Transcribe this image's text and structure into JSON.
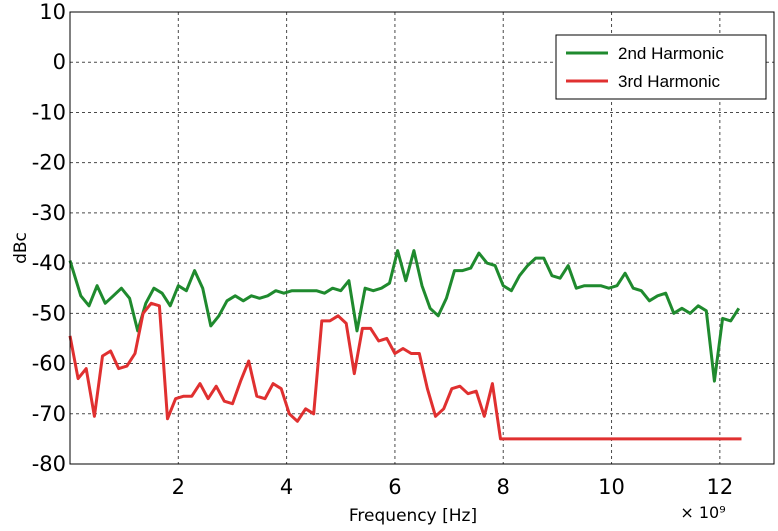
{
  "chart_data": {
    "type": "line",
    "xlabel": "Frequency [Hz]",
    "ylabel": "dBc",
    "x_multiplier_label": "× 10⁹",
    "xlim": [
      0,
      13
    ],
    "ylim": [
      -80,
      10
    ],
    "x_ticks": [
      {
        "value": 2,
        "label": "2"
      },
      {
        "value": 4,
        "label": "4"
      },
      {
        "value": 6,
        "label": "6"
      },
      {
        "value": 8,
        "label": "8"
      },
      {
        "value": 10,
        "label": "10"
      },
      {
        "value": 12,
        "label": "12"
      }
    ],
    "y_ticks": [
      {
        "value": 10,
        "label": "10"
      },
      {
        "value": 0,
        "label": "0"
      },
      {
        "value": -10,
        "label": "-10"
      },
      {
        "value": -20,
        "label": "-20"
      },
      {
        "value": -30,
        "label": "-30"
      },
      {
        "value": -40,
        "label": "-40"
      },
      {
        "value": -50,
        "label": "-50"
      },
      {
        "value": -60,
        "label": "-60"
      },
      {
        "value": -70,
        "label": "-70"
      },
      {
        "value": -80,
        "label": "-80"
      }
    ],
    "grid": true,
    "legend_position": "top-right",
    "series": [
      {
        "name": "2nd Harmonic",
        "color": "#1f8a2e",
        "points": [
          [
            0.0,
            -39.5
          ],
          [
            0.2,
            -46.5
          ],
          [
            0.35,
            -48.5
          ],
          [
            0.5,
            -44.5
          ],
          [
            0.65,
            -48
          ],
          [
            0.8,
            -46.5
          ],
          [
            0.95,
            -45
          ],
          [
            1.1,
            -47
          ],
          [
            1.25,
            -53.5
          ],
          [
            1.4,
            -48
          ],
          [
            1.55,
            -45
          ],
          [
            1.7,
            -46
          ],
          [
            1.85,
            -48.5
          ],
          [
            2.0,
            -44.5
          ],
          [
            2.15,
            -45.5
          ],
          [
            2.3,
            -41.5
          ],
          [
            2.45,
            -45
          ],
          [
            2.6,
            -52.5
          ],
          [
            2.75,
            -50.5
          ],
          [
            2.9,
            -47.5
          ],
          [
            3.05,
            -46.5
          ],
          [
            3.2,
            -47.5
          ],
          [
            3.35,
            -46.5
          ],
          [
            3.5,
            -47
          ],
          [
            3.65,
            -46.5
          ],
          [
            3.8,
            -45.5
          ],
          [
            3.95,
            -46
          ],
          [
            4.1,
            -45.5
          ],
          [
            4.25,
            -45.5
          ],
          [
            4.4,
            -45.5
          ],
          [
            4.55,
            -45.5
          ],
          [
            4.7,
            -46
          ],
          [
            4.85,
            -45
          ],
          [
            5.0,
            -45.5
          ],
          [
            5.15,
            -43.5
          ],
          [
            5.3,
            -53.5
          ],
          [
            5.45,
            -45
          ],
          [
            5.6,
            -45.5
          ],
          [
            5.75,
            -45
          ],
          [
            5.9,
            -44
          ],
          [
            6.05,
            -37.5
          ],
          [
            6.2,
            -43.5
          ],
          [
            6.35,
            -37.5
          ],
          [
            6.5,
            -44.5
          ],
          [
            6.65,
            -49
          ],
          [
            6.8,
            -50.5
          ],
          [
            6.95,
            -47
          ],
          [
            7.1,
            -41.5
          ],
          [
            7.25,
            -41.5
          ],
          [
            7.4,
            -41
          ],
          [
            7.55,
            -38
          ],
          [
            7.7,
            -40
          ],
          [
            7.85,
            -40.5
          ],
          [
            8.0,
            -44.5
          ],
          [
            8.15,
            -45.5
          ],
          [
            8.3,
            -42.5
          ],
          [
            8.45,
            -40.5
          ],
          [
            8.6,
            -39
          ],
          [
            8.75,
            -39
          ],
          [
            8.9,
            -42.5
          ],
          [
            9.05,
            -43
          ],
          [
            9.2,
            -40.5
          ],
          [
            9.35,
            -45
          ],
          [
            9.5,
            -44.5
          ],
          [
            9.65,
            -44.5
          ],
          [
            9.8,
            -44.5
          ],
          [
            9.95,
            -45
          ],
          [
            10.1,
            -44.5
          ],
          [
            10.25,
            -42
          ],
          [
            10.4,
            -45
          ],
          [
            10.55,
            -45.5
          ],
          [
            10.7,
            -47.5
          ],
          [
            10.85,
            -46.5
          ],
          [
            11.0,
            -46
          ],
          [
            11.15,
            -50
          ],
          [
            11.3,
            -49
          ],
          [
            11.45,
            -50
          ],
          [
            11.6,
            -48.5
          ],
          [
            11.75,
            -49.5
          ],
          [
            11.9,
            -63.5
          ],
          [
            12.05,
            -51
          ],
          [
            12.2,
            -51.5
          ],
          [
            12.35,
            -49
          ]
        ]
      },
      {
        "name": "3rd Harmonic",
        "color": "#e03030",
        "points": [
          [
            0.0,
            -54.5
          ],
          [
            0.15,
            -63
          ],
          [
            0.3,
            -61
          ],
          [
            0.45,
            -70.5
          ],
          [
            0.6,
            -58.5
          ],
          [
            0.75,
            -57.5
          ],
          [
            0.9,
            -61
          ],
          [
            1.05,
            -60.5
          ],
          [
            1.2,
            -58
          ],
          [
            1.35,
            -50
          ],
          [
            1.5,
            -48
          ],
          [
            1.65,
            -48.5
          ],
          [
            1.8,
            -71
          ],
          [
            1.95,
            -67
          ],
          [
            2.1,
            -66.5
          ],
          [
            2.25,
            -66.5
          ],
          [
            2.4,
            -64
          ],
          [
            2.55,
            -67
          ],
          [
            2.7,
            -64.5
          ],
          [
            2.85,
            -67.5
          ],
          [
            3.0,
            -68
          ],
          [
            3.15,
            -63.5
          ],
          [
            3.3,
            -59.5
          ],
          [
            3.45,
            -66.5
          ],
          [
            3.6,
            -67
          ],
          [
            3.75,
            -64
          ],
          [
            3.9,
            -65
          ],
          [
            4.05,
            -70
          ],
          [
            4.2,
            -71.5
          ],
          [
            4.35,
            -69
          ],
          [
            4.5,
            -70
          ],
          [
            4.65,
            -51.5
          ],
          [
            4.8,
            -51.5
          ],
          [
            4.95,
            -50.5
          ],
          [
            5.1,
            -52
          ],
          [
            5.25,
            -62
          ],
          [
            5.4,
            -53
          ],
          [
            5.55,
            -53
          ],
          [
            5.7,
            -55.5
          ],
          [
            5.85,
            -55
          ],
          [
            6.0,
            -58
          ],
          [
            6.15,
            -57
          ],
          [
            6.3,
            -58
          ],
          [
            6.45,
            -58
          ],
          [
            6.6,
            -65
          ],
          [
            6.75,
            -70.5
          ],
          [
            6.9,
            -69
          ],
          [
            7.05,
            -65
          ],
          [
            7.2,
            -64.5
          ],
          [
            7.35,
            -66
          ],
          [
            7.5,
            -65.5
          ],
          [
            7.65,
            -70.5
          ],
          [
            7.8,
            -64
          ],
          [
            7.95,
            -75
          ],
          [
            8.1,
            -75
          ],
          [
            8.5,
            -75
          ],
          [
            9.0,
            -75
          ],
          [
            10.0,
            -75
          ],
          [
            11.0,
            -75
          ],
          [
            12.0,
            -75
          ],
          [
            12.4,
            -75
          ]
        ]
      }
    ]
  }
}
